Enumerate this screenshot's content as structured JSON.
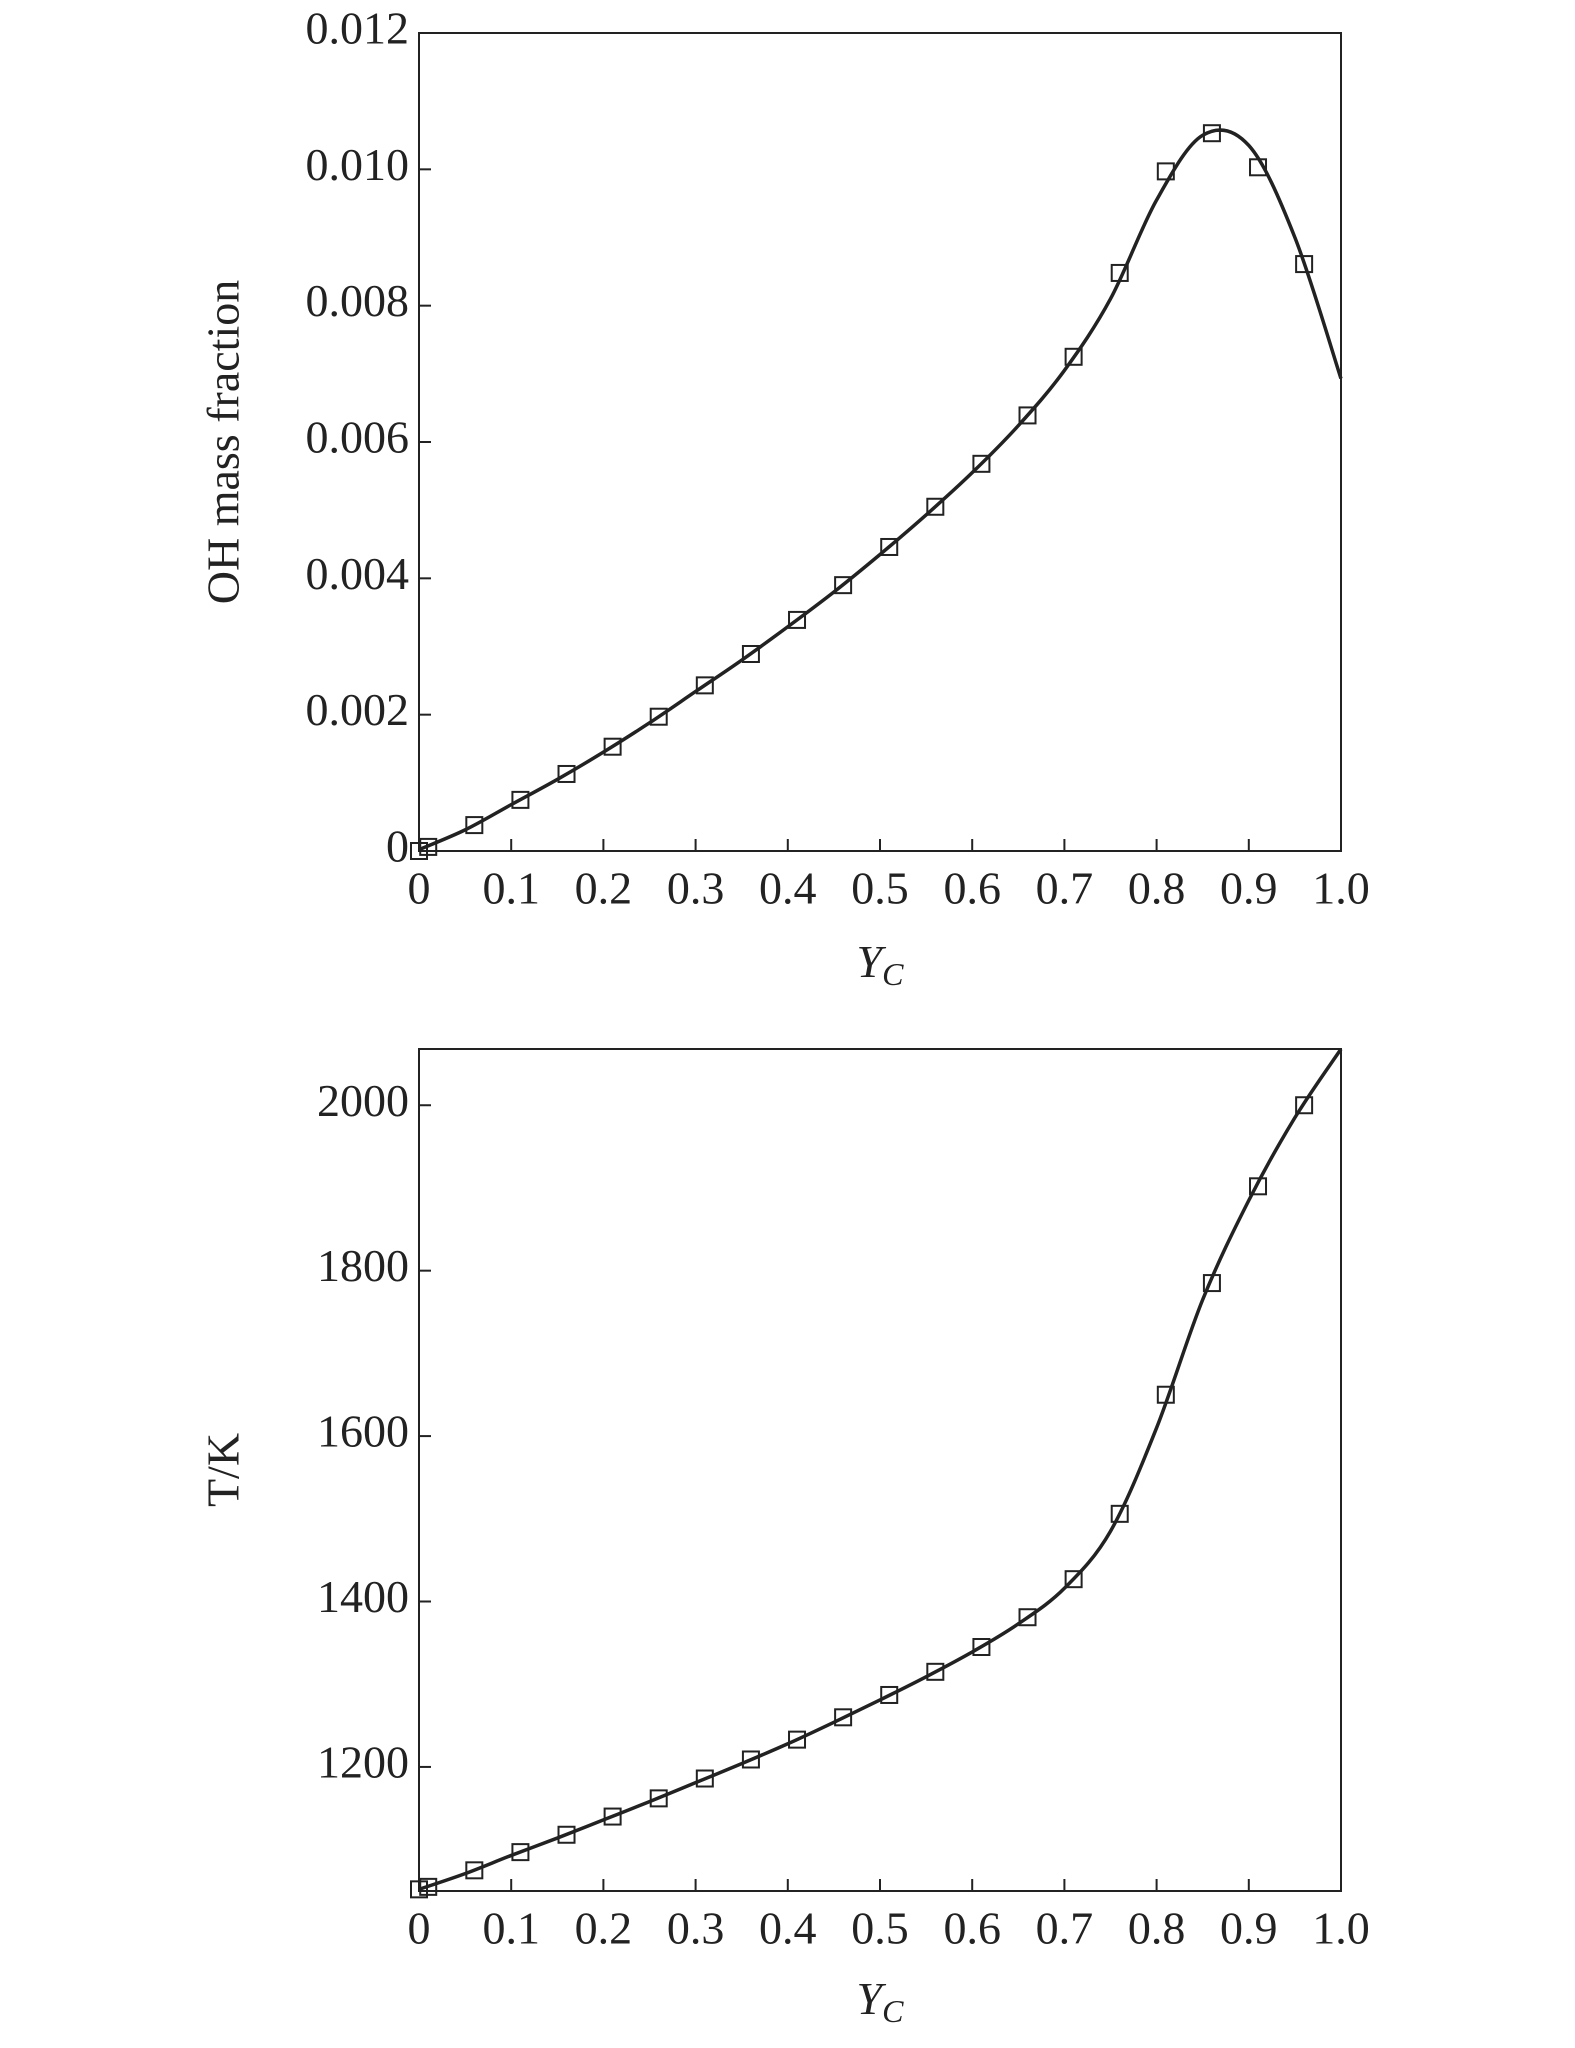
{
  "chart_data": [
    {
      "type": "scatter",
      "ylabel": "OH mass fraction",
      "xlabel": "Y",
      "xlabel_subscript": "C",
      "xlim": [
        0,
        1
      ],
      "ylim": [
        0,
        0.012
      ],
      "xticks": [
        0,
        0.1,
        0.2,
        0.3,
        0.4,
        0.5,
        0.6,
        0.7,
        0.8,
        0.9,
        {
          "value": 1,
          "label": "1.0"
        }
      ],
      "yticks": [
        0,
        0.002,
        0.004,
        0.006,
        0.008,
        {
          "value": 0.01,
          "label": "0.010"
        },
        0.012
      ],
      "series": [
        {
          "kind": "line",
          "color": "#222222",
          "x": [
            0,
            0.05,
            0.1,
            0.15,
            0.2,
            0.25,
            0.3,
            0.35,
            0.4,
            0.45,
            0.5,
            0.55,
            0.6,
            0.65,
            0.7,
            0.75,
            0.8,
            0.85,
            0.9,
            0.95,
            1.0
          ],
          "values": [
            2e-05,
            0.00031,
            0.00068,
            0.00105,
            0.00145,
            0.00188,
            0.00234,
            0.0028,
            0.00329,
            0.0038,
            0.00435,
            0.00493,
            0.00555,
            0.00624,
            0.00705,
            0.0081,
            0.00955,
            0.0105,
            0.01035,
            0.009,
            0.00693
          ]
        },
        {
          "kind": "marker",
          "color": "#222222",
          "x": [
            0,
            0.01,
            0.06,
            0.11,
            0.16,
            0.21,
            0.26,
            0.31,
            0.36,
            0.41,
            0.46,
            0.51,
            0.56,
            0.61,
            0.66,
            0.71,
            0.76,
            0.81,
            0.86,
            0.91,
            0.96
          ],
          "values": [
            0,
            6e-05,
            0.00038,
            0.00075,
            0.00113,
            0.00153,
            0.00197,
            0.00243,
            0.00289,
            0.00339,
            0.0039,
            0.00446,
            0.00505,
            0.00568,
            0.00639,
            0.00725,
            0.00848,
            0.00997,
            0.01053,
            0.01003,
            0.00861
          ]
        }
      ]
    },
    {
      "type": "scatter",
      "ylabel": "T/K",
      "xlabel": "Y",
      "xlabel_subscript": "C",
      "xlim": [
        0,
        1
      ],
      "ylim": [
        1050,
        2068
      ],
      "xticks": [
        0,
        0.1,
        0.2,
        0.3,
        0.4,
        0.5,
        0.6,
        0.7,
        0.8,
        0.9,
        {
          "value": 1,
          "label": "1.0"
        }
      ],
      "yticks": [
        1200,
        1400,
        1600,
        1800,
        2000
      ],
      "series": [
        {
          "kind": "line",
          "color": "#222222",
          "x": [
            0,
            0.05,
            0.1,
            0.15,
            0.2,
            0.25,
            0.3,
            0.35,
            0.4,
            0.45,
            0.5,
            0.55,
            0.6,
            0.65,
            0.7,
            0.75,
            0.8,
            0.85,
            0.9,
            0.95,
            1.0
          ],
          "values": [
            1052,
            1071,
            1093,
            1114,
            1136,
            1158,
            1181,
            1204,
            1228,
            1254,
            1281,
            1309,
            1339,
            1373,
            1416,
            1485,
            1610,
            1765,
            1885,
            1985,
            2068
          ]
        },
        {
          "kind": "marker",
          "color": "#222222",
          "x": [
            0,
            0.01,
            0.06,
            0.11,
            0.16,
            0.21,
            0.26,
            0.31,
            0.36,
            0.41,
            0.46,
            0.51,
            0.56,
            0.61,
            0.66,
            0.71,
            0.76,
            0.81,
            0.86,
            0.91,
            0.96
          ],
          "values": [
            1052,
            1055,
            1075,
            1097,
            1118,
            1140,
            1162,
            1186,
            1209,
            1233,
            1260,
            1287,
            1315,
            1345,
            1381,
            1427,
            1506,
            1650,
            1785,
            1902,
            2000
          ]
        }
      ]
    }
  ]
}
